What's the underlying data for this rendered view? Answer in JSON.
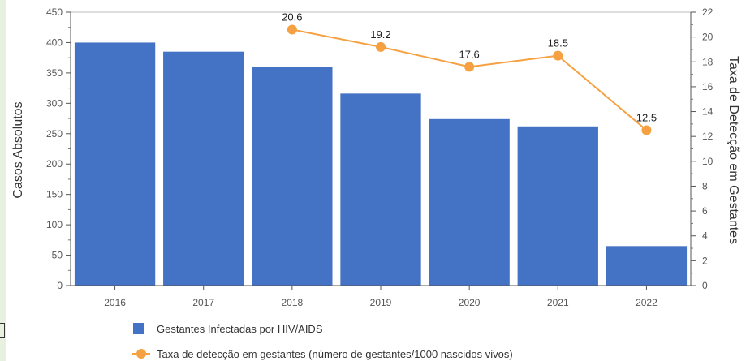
{
  "chart_data": {
    "type": "bar",
    "categories": [
      "2016",
      "2017",
      "2018",
      "2019",
      "2020",
      "2021",
      "2022"
    ],
    "series": [
      {
        "name": "Gestantes Infectadas por HIV/AIDS",
        "type": "bar",
        "axis": "left",
        "color": "#4472c4",
        "values": [
          400,
          385,
          360,
          316,
          274,
          262,
          65
        ]
      },
      {
        "name": "Taxa de detecção em gestantes (número de gestantes/1000 nascidos vivos)",
        "type": "line",
        "axis": "right",
        "color": "#f5a142",
        "values": [
          null,
          null,
          20.6,
          19.2,
          17.6,
          18.5,
          12.5
        ],
        "labels": [
          "",
          "",
          "20.6",
          "19.2",
          "17.6",
          "18.5",
          "12.5"
        ]
      }
    ],
    "ylabel": "Casos Absolutos",
    "ylabel_right": "Taxa de Detecção em Gestantes",
    "ylim": [
      0,
      450
    ],
    "ylim_right": [
      0,
      22
    ],
    "yticks": [
      "0",
      "50",
      "100",
      "150",
      "200",
      "250",
      "300",
      "350",
      "400",
      "450"
    ],
    "yticks_right": [
      "0",
      "2",
      "4",
      "6",
      "8",
      "10",
      "12",
      "14",
      "16",
      "18",
      "20",
      "22"
    ],
    "grid": false,
    "legend_position": "bottom"
  }
}
